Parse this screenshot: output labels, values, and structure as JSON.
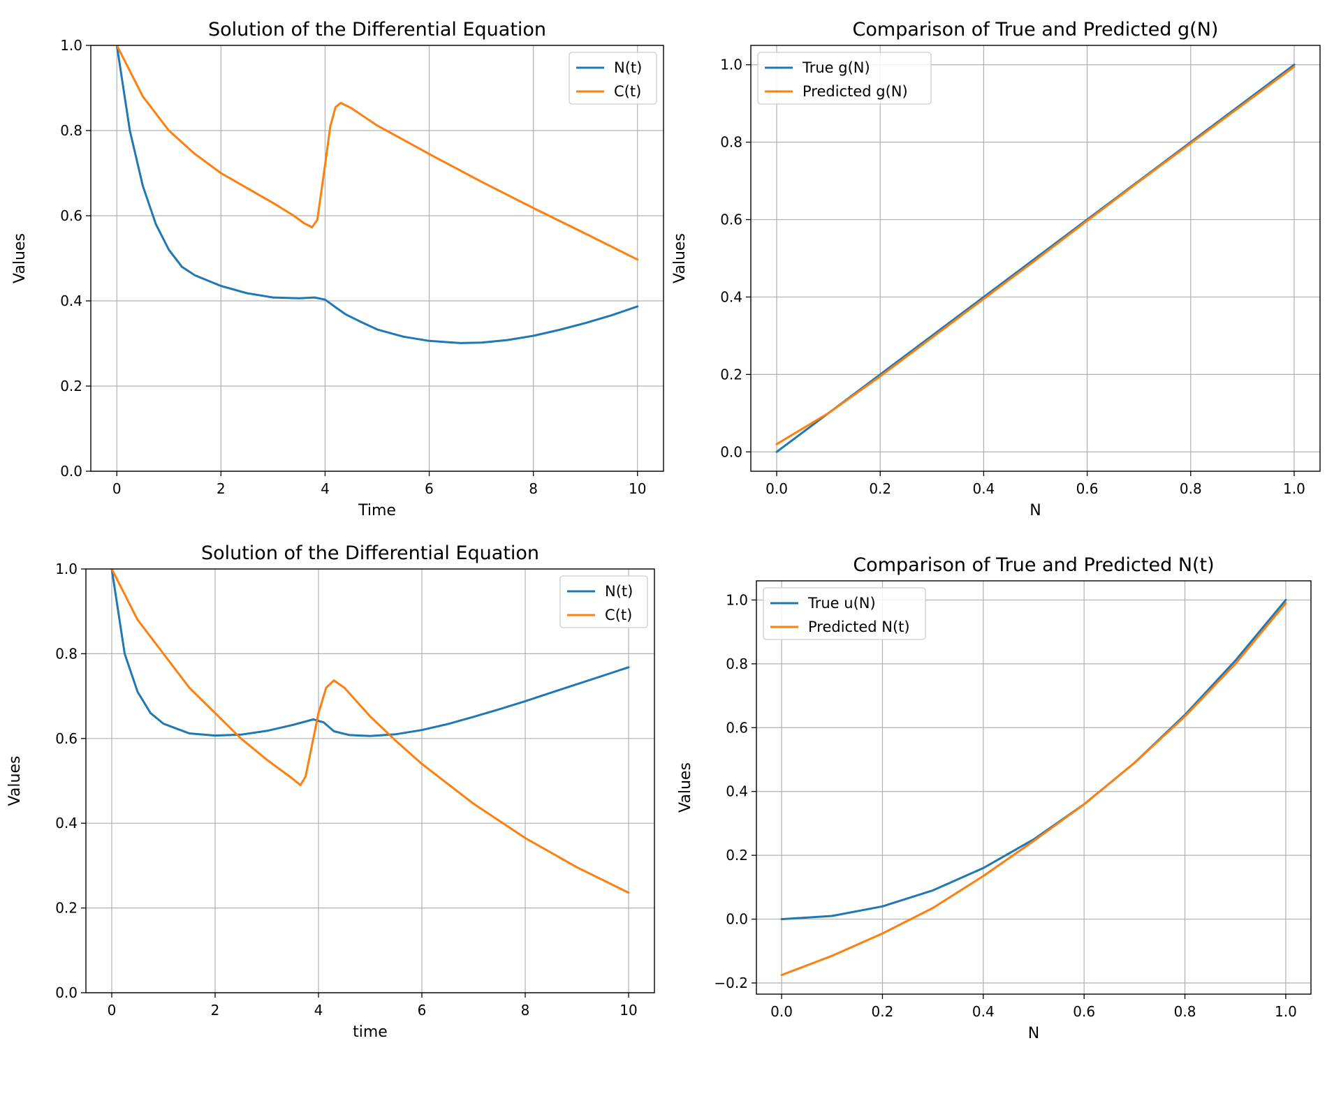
{
  "figure": {
    "background": "#ffffff",
    "colors": {
      "series_blue": "#1f77b4",
      "series_orange": "#ff7f0e",
      "grid": "#b0b0b0",
      "legend_border": "#cccccc"
    }
  },
  "chart_data": [
    {
      "type": "line",
      "title": "Solution of the Differential Equation",
      "xlabel": "Time",
      "ylabel": "Values",
      "xlim": [
        -0.5,
        10.5
      ],
      "ylim": [
        0.0,
        1.0
      ],
      "xticks": [
        0,
        2,
        4,
        6,
        8,
        10
      ],
      "xtick_labels": [
        "0",
        "2",
        "4",
        "6",
        "8",
        "10"
      ],
      "yticks": [
        0,
        0.2,
        0.4,
        0.6,
        0.8,
        1.0
      ],
      "ytick_labels": [
        "0.0",
        "0.2",
        "0.4",
        "0.6",
        "0.8",
        "1.0"
      ],
      "grid": true,
      "legend_position": "upper-right",
      "series": [
        {
          "name": "N(t)",
          "color": "#1f77b4",
          "x": [
            0,
            0.25,
            0.5,
            0.75,
            1.0,
            1.25,
            1.5,
            2.0,
            2.5,
            3.0,
            3.5,
            3.8,
            4.0,
            4.2,
            4.4,
            4.7,
            5.0,
            5.5,
            6.0,
            6.6,
            7.0,
            7.5,
            8.0,
            8.5,
            9.0,
            9.5,
            10.0
          ],
          "y": [
            1.0,
            0.8,
            0.67,
            0.58,
            0.52,
            0.48,
            0.46,
            0.435,
            0.418,
            0.408,
            0.406,
            0.408,
            0.403,
            0.385,
            0.368,
            0.35,
            0.333,
            0.316,
            0.306,
            0.301,
            0.302,
            0.308,
            0.318,
            0.332,
            0.348,
            0.366,
            0.387
          ]
        },
        {
          "name": "C(t)",
          "color": "#ff7f0e",
          "x": [
            0,
            0.5,
            1.0,
            1.5,
            2.0,
            2.5,
            3.0,
            3.4,
            3.6,
            3.75,
            3.85,
            4.0,
            4.1,
            4.2,
            4.3,
            4.5,
            5.0,
            6.0,
            7.0,
            8.0,
            9.0,
            10.0
          ],
          "y": [
            1.0,
            0.88,
            0.8,
            0.745,
            0.7,
            0.665,
            0.63,
            0.6,
            0.582,
            0.573,
            0.59,
            0.72,
            0.81,
            0.855,
            0.865,
            0.853,
            0.812,
            0.745,
            0.68,
            0.618,
            0.558,
            0.497
          ]
        }
      ]
    },
    {
      "type": "line",
      "title": "Comparison of True and Predicted g(N)",
      "xlabel": "N",
      "ylabel": "Values",
      "xlim": [
        -0.05,
        1.05
      ],
      "ylim": [
        -0.05,
        1.05
      ],
      "xticks": [
        0,
        0.2,
        0.4,
        0.6,
        0.8,
        1.0
      ],
      "xtick_labels": [
        "0.0",
        "0.2",
        "0.4",
        "0.6",
        "0.8",
        "1.0"
      ],
      "yticks": [
        0,
        0.2,
        0.4,
        0.6,
        0.8,
        1.0
      ],
      "ytick_labels": [
        "0.0",
        "0.2",
        "0.4",
        "0.6",
        "0.8",
        "1.0"
      ],
      "grid": true,
      "legend_position": "upper-left",
      "series": [
        {
          "name": "True g(N)",
          "color": "#1f77b4",
          "x": [
            0,
            0.1,
            0.2,
            0.3,
            0.4,
            0.5,
            0.6,
            0.7,
            0.8,
            0.9,
            1.0
          ],
          "y": [
            0,
            0.1,
            0.2,
            0.3,
            0.4,
            0.5,
            0.6,
            0.7,
            0.8,
            0.9,
            1.0
          ]
        },
        {
          "name": "Predicted g(N)",
          "color": "#ff7f0e",
          "x": [
            0,
            0.1,
            0.2,
            0.3,
            0.4,
            0.5,
            0.6,
            0.7,
            0.8,
            0.9,
            1.0
          ],
          "y": [
            0.02,
            0.1,
            0.195,
            0.295,
            0.395,
            0.495,
            0.597,
            0.698,
            0.797,
            0.896,
            0.995
          ]
        }
      ]
    },
    {
      "type": "line",
      "title": "Solution of the Differential Equation",
      "xlabel": "time",
      "ylabel": "Values",
      "xlim": [
        -0.5,
        10.5
      ],
      "ylim": [
        0.0,
        1.0
      ],
      "xticks": [
        0,
        2,
        4,
        6,
        8,
        10
      ],
      "xtick_labels": [
        "0",
        "2",
        "4",
        "6",
        "8",
        "10"
      ],
      "yticks": [
        0,
        0.2,
        0.4,
        0.6,
        0.8,
        1.0
      ],
      "ytick_labels": [
        "0.0",
        "0.2",
        "0.4",
        "0.6",
        "0.8",
        "1.0"
      ],
      "grid": true,
      "legend_position": "upper-right",
      "series": [
        {
          "name": "N(t)",
          "color": "#1f77b4",
          "x": [
            0,
            0.25,
            0.5,
            0.75,
            1.0,
            1.5,
            2.0,
            2.5,
            3.0,
            3.5,
            3.9,
            4.1,
            4.3,
            4.6,
            5.0,
            5.5,
            6.0,
            6.5,
            7.0,
            7.5,
            8.0,
            8.5,
            9.0,
            9.5,
            10.0
          ],
          "y": [
            1.0,
            0.8,
            0.71,
            0.66,
            0.635,
            0.612,
            0.607,
            0.609,
            0.618,
            0.632,
            0.645,
            0.638,
            0.617,
            0.608,
            0.606,
            0.61,
            0.62,
            0.634,
            0.651,
            0.669,
            0.688,
            0.708,
            0.728,
            0.748,
            0.768
          ]
        },
        {
          "name": "C(t)",
          "color": "#ff7f0e",
          "x": [
            0,
            0.5,
            1.0,
            1.5,
            2.0,
            2.5,
            3.0,
            3.5,
            3.65,
            3.75,
            3.85,
            4.0,
            4.15,
            4.3,
            4.5,
            5.0,
            5.5,
            6.0,
            7.0,
            8.0,
            9.0,
            10.0
          ],
          "y": [
            1.0,
            0.88,
            0.8,
            0.72,
            0.66,
            0.6,
            0.55,
            0.505,
            0.49,
            0.51,
            0.57,
            0.66,
            0.72,
            0.737,
            0.72,
            0.652,
            0.594,
            0.54,
            0.446,
            0.365,
            0.296,
            0.236
          ]
        }
      ]
    },
    {
      "type": "line",
      "title": "Comparison of True and Predicted N(t)",
      "xlabel": "N",
      "ylabel": "Values",
      "xlim": [
        -0.05,
        1.05
      ],
      "ylim": [
        -0.235,
        1.06
      ],
      "xticks": [
        0,
        0.2,
        0.4,
        0.6,
        0.8,
        1.0
      ],
      "xtick_labels": [
        "0.0",
        "0.2",
        "0.4",
        "0.6",
        "0.8",
        "1.0"
      ],
      "yticks": [
        -0.2,
        0,
        0.2,
        0.4,
        0.6,
        0.8,
        1.0
      ],
      "ytick_labels": [
        "−0.2",
        "0.0",
        "0.2",
        "0.4",
        "0.6",
        "0.8",
        "1.0"
      ],
      "grid": true,
      "legend_position": "upper-left",
      "series": [
        {
          "name": "True u(N)",
          "color": "#1f77b4",
          "x": [
            0,
            0.1,
            0.2,
            0.3,
            0.4,
            0.5,
            0.6,
            0.7,
            0.8,
            0.9,
            1.0
          ],
          "y": [
            0,
            0.01,
            0.04,
            0.09,
            0.16,
            0.25,
            0.36,
            0.49,
            0.64,
            0.81,
            1.0
          ]
        },
        {
          "name": "Predicted N(t)",
          "color": "#ff7f0e",
          "x": [
            0,
            0.1,
            0.2,
            0.3,
            0.4,
            0.5,
            0.6,
            0.7,
            0.8,
            0.9,
            1.0
          ],
          "y": [
            -0.175,
            -0.115,
            -0.045,
            0.035,
            0.135,
            0.245,
            0.36,
            0.49,
            0.635,
            0.8,
            0.99
          ]
        }
      ]
    }
  ]
}
